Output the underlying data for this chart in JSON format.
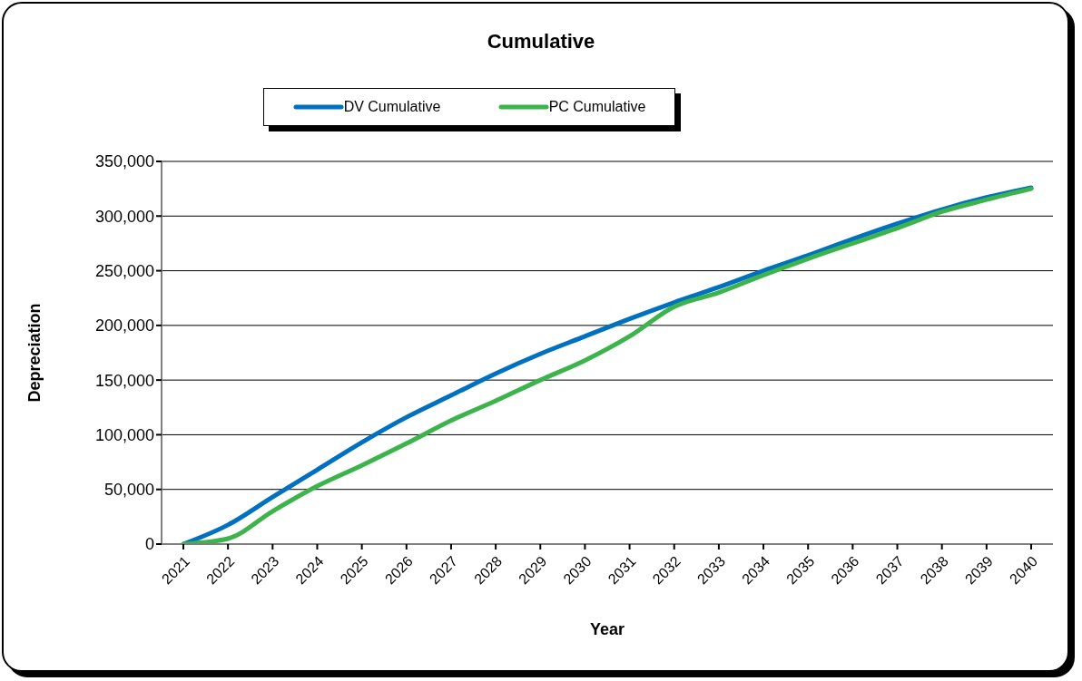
{
  "chart_data": {
    "type": "line",
    "title": "Cumulative",
    "xlabel": "Year",
    "ylabel": "Depreciation",
    "categories": [
      "2021",
      "2022",
      "2023",
      "2024",
      "2025",
      "2026",
      "2027",
      "2028",
      "2029",
      "2030",
      "2031",
      "2032",
      "2033",
      "2034",
      "2035",
      "2036",
      "2037",
      "2038",
      "2039",
      "2040"
    ],
    "series": [
      {
        "name": "DV Cumulative",
        "color": "#0070c0",
        "values": [
          0,
          17500,
          43000,
          68000,
          93000,
          116000,
          136000,
          156000,
          174000,
          190000,
          206000,
          221000,
          235000,
          250000,
          264000,
          279000,
          293000,
          306000,
          317000,
          326000
        ]
      },
      {
        "name": "PC Cumulative",
        "color": "#3cb44b",
        "values": [
          0,
          5000,
          30000,
          53000,
          72000,
          92000,
          113000,
          131000,
          150000,
          168000,
          190000,
          217000,
          230000,
          246000,
          261000,
          275000,
          289000,
          304000,
          315000,
          325000
        ]
      }
    ],
    "ylim": [
      0,
      350000
    ],
    "yticks": [
      0,
      {
        "value": 50000,
        "label": "50,000"
      },
      {
        "value": 100000,
        "label": "100,000"
      },
      {
        "value": 150000,
        "label": "150,000"
      },
      {
        "value": 200000,
        "label": "200,000"
      },
      {
        "value": 250000,
        "label": "250,000"
      },
      {
        "value": 300000,
        "label": "300,000"
      },
      {
        "value": 350000,
        "label": "350,000"
      }
    ],
    "grid": "y",
    "legend": "top",
    "marker": "none",
    "line_style": "solid"
  }
}
